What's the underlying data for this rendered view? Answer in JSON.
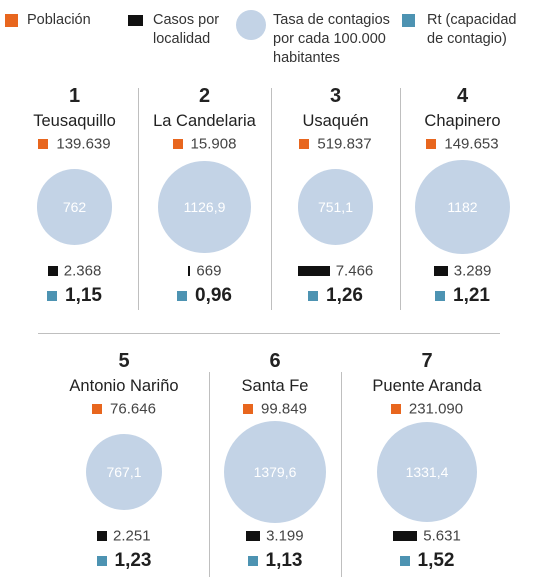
{
  "colors": {
    "population": "#e8661e",
    "cases": "#111111",
    "bubble": "#c3d3e6",
    "rt": "#4d93b2"
  },
  "legend": {
    "population": "Población",
    "cases_line1": "Casos por",
    "cases_line2": "localidad",
    "rate_line1": "Tasa de contagios",
    "rate_line2": "por cada 100.000",
    "rate_line3": "habitantes",
    "rt_line1": "Rt (capacidad",
    "rt_line2": "de contagio)"
  },
  "chart_data": {
    "type": "table",
    "title": "",
    "rows": [
      {
        "rank": "1",
        "name": "Teusaquillo",
        "population_label": "139.639",
        "population": 139639,
        "cases_label": "2.368",
        "cases": 2368,
        "rate_label": "762",
        "rate": 762,
        "rt_label": "1,15",
        "rt": 1.15
      },
      {
        "rank": "2",
        "name": "La Candelaria",
        "population_label": "15.908",
        "population": 15908,
        "cases_label": "669",
        "cases": 669,
        "rate_label": "1126,9",
        "rate": 1126.9,
        "rt_label": "0,96",
        "rt": 0.96
      },
      {
        "rank": "3",
        "name": "Usaquén",
        "population_label": "519.837",
        "population": 519837,
        "cases_label": "7.466",
        "cases": 7466,
        "rate_label": "751,1",
        "rate": 751.1,
        "rt_label": "1,26",
        "rt": 1.26
      },
      {
        "rank": "4",
        "name": "Chapinero",
        "population_label": "149.653",
        "population": 149653,
        "cases_label": "3.289",
        "cases": 3289,
        "rate_label": "1182",
        "rate": 1182,
        "rt_label": "1,21",
        "rt": 1.21
      },
      {
        "rank": "5",
        "name": "Antonio Nariño",
        "population_label": "76.646",
        "population": 76646,
        "cases_label": "2.251",
        "cases": 2251,
        "rate_label": "767,1",
        "rate": 767.1,
        "rt_label": "1,23",
        "rt": 1.23
      },
      {
        "rank": "6",
        "name": "Santa Fe",
        "population_label": "99.849",
        "population": 99849,
        "cases_label": "3.199",
        "cases": 3199,
        "rate_label": "1379,6",
        "rate": 1379.6,
        "rt_label": "1,13",
        "rt": 1.13
      },
      {
        "rank": "7",
        "name": "Puente Aranda",
        "population_label": "231.090",
        "population": 231090,
        "cases_label": "5.631",
        "cases": 5631,
        "rate_label": "1331,4",
        "rate": 1331.4,
        "rt_label": "1,52",
        "rt": 1.52
      }
    ]
  }
}
